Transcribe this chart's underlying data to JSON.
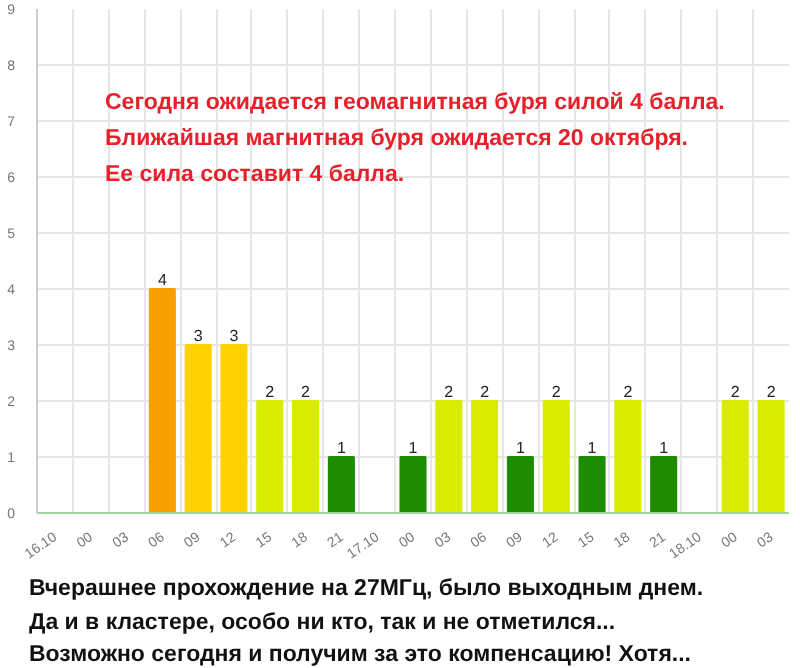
{
  "chart_data": {
    "type": "bar",
    "categories": [
      "16.10",
      "00",
      "03",
      "06",
      "09",
      "12",
      "15",
      "18",
      "21",
      "17.10",
      "00",
      "03",
      "06",
      "09",
      "12",
      "15",
      "18",
      "21",
      "18.10",
      "00",
      "03"
    ],
    "values": [
      0,
      0,
      0,
      4,
      3,
      3,
      2,
      2,
      1,
      0,
      1,
      2,
      2,
      1,
      2,
      1,
      2,
      1,
      0,
      2,
      2
    ],
    "colors": [
      "#1e8c00",
      "#1e8c00",
      "#1e8c00",
      "#f7a000",
      "#ffd200",
      "#ffd200",
      "#d8ec00",
      "#d8ec00",
      "#1e8c00",
      "#1e8c00",
      "#1e8c00",
      "#d8ec00",
      "#d8ec00",
      "#1e8c00",
      "#d8ec00",
      "#1e8c00",
      "#d8ec00",
      "#1e8c00",
      "#1e8c00",
      "#d8ec00",
      "#d8ec00"
    ],
    "value_labels": [
      null,
      null,
      null,
      "4",
      "3",
      "3",
      "2",
      "2",
      "1",
      null,
      "1",
      "2",
      "2",
      "1",
      "2",
      "1",
      "2",
      "1",
      null,
      "2",
      "2"
    ],
    "ylim": [
      0,
      9
    ],
    "yticks": [
      0,
      1,
      2,
      3,
      4,
      5,
      6,
      7,
      8,
      9
    ],
    "grid": true,
    "annotations": [
      "Сегодня ожидается геомагнитная буря силой 4 балла.",
      "Ближайшая магнитная буря ожидается 20 октября.",
      "Ее сила составит 4 балла.",
      "Вчерашнее прохождение на 27МГц, было выходным днем.",
      "Да и в кластере, особо ни кто, так и не отметился...",
      "Возможно сегодня и получим за это компенсацию! Хотя..."
    ]
  }
}
